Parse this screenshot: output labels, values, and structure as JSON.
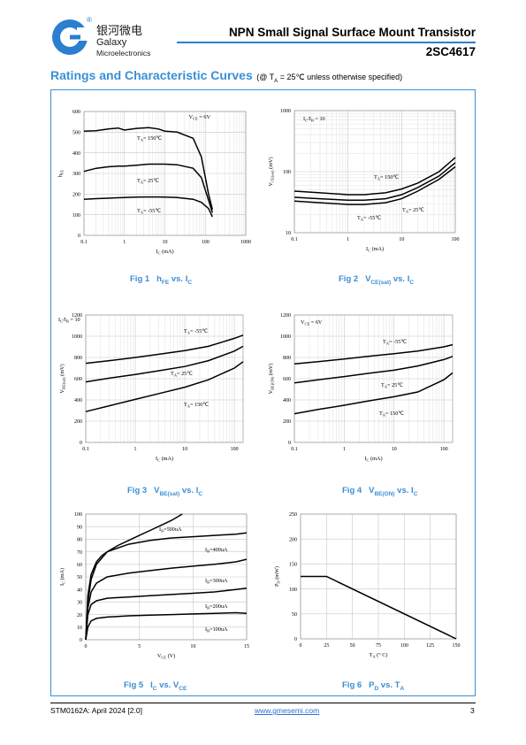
{
  "logo": {
    "registered_mark": "®",
    "chinese_name": "银河微电",
    "name_line1": "Galaxy",
    "name_line2": "Microelectronics"
  },
  "header": {
    "title": "NPN Small Signal Surface Mount Transistor",
    "part_number": "2SC4617"
  },
  "section": {
    "title": "Ratings and Characteristic Curves",
    "note_prefix": "(@ T",
    "note_sub": "A",
    "note_suffix": " = 25℃ unless otherwise specified)"
  },
  "figures": [
    {
      "caption_prefix": "Fig 1",
      "caption_main": "h",
      "caption_sub": "FE",
      "caption_mid": " vs. I",
      "caption_sub2": "C"
    },
    {
      "caption_prefix": "Fig 2",
      "caption_main": "V",
      "caption_sub": "CE(sat)",
      "caption_mid": " vs. I",
      "caption_sub2": "C"
    },
    {
      "caption_prefix": "Fig 3",
      "caption_main": "V",
      "caption_sub": "BE(sat)",
      "caption_mid": " vs. I",
      "caption_sub2": "C"
    },
    {
      "caption_prefix": "Fig 4",
      "caption_main": "V",
      "caption_sub": "BE(ON)",
      "caption_mid": " vs. I",
      "caption_sub2": "C"
    },
    {
      "caption_prefix": "Fig 5",
      "caption_main": "I",
      "caption_sub": "C",
      "caption_mid": " vs. V",
      "caption_sub2": "CE"
    },
    {
      "caption_prefix": "Fig 6",
      "caption_main": "P",
      "caption_sub": "D",
      "caption_mid": " vs. T",
      "caption_sub2": "A"
    }
  ],
  "chart_data": [
    {
      "type": "line",
      "xscale": "log",
      "xlim": [
        0.1,
        1000
      ],
      "ylim": [
        0,
        600
      ],
      "grid": true,
      "xticks": [
        "0.1",
        "1",
        "10",
        "100",
        "1000"
      ],
      "yticks": [
        "0",
        "100",
        "200",
        "300",
        "400",
        "500",
        "600"
      ],
      "xlabel": "I  (mA)",
      "xlabel_sub": "C",
      "ylabel": "h",
      "ylabel_sub": "FE",
      "condition": "V   =  6V",
      "condition_sub": "CE",
      "series": [
        {
          "name": "T  = 150℃",
          "x": [
            0.1,
            0.2,
            0.4,
            0.7,
            1,
            2,
            4,
            7,
            10,
            20,
            50,
            80,
            120,
            150
          ],
          "y": [
            505,
            507,
            515,
            520,
            510,
            518,
            522,
            515,
            505,
            500,
            470,
            380,
            200,
            125
          ]
        },
        {
          "name": "T  = 25℃",
          "x": [
            0.1,
            0.2,
            0.4,
            0.7,
            1,
            2,
            4,
            7,
            10,
            20,
            50,
            80,
            120,
            150
          ],
          "y": [
            310,
            325,
            332,
            335,
            335,
            340,
            345,
            345,
            345,
            342,
            325,
            280,
            170,
            110
          ]
        },
        {
          "name": "T  = -55℃",
          "x": [
            0.1,
            0.2,
            0.4,
            0.7,
            1,
            2,
            4,
            7,
            10,
            20,
            50,
            80,
            120,
            150
          ],
          "y": [
            175,
            178,
            180,
            182,
            183,
            185,
            186,
            186,
            185,
            183,
            175,
            160,
            130,
            90
          ]
        }
      ]
    },
    {
      "type": "line",
      "xscale": "log",
      "yscale": "log",
      "xlim": [
        0.1,
        100
      ],
      "ylim": [
        10,
        1000
      ],
      "grid": true,
      "xticks": [
        "0.1",
        "1",
        "10",
        "100"
      ],
      "yticks": [
        "10",
        "100",
        "1000"
      ],
      "xlabel": "I  (mA)",
      "xlabel_sub": "C",
      "ylabel": "V       (mV)",
      "ylabel_sub": "CE(sat)",
      "condition": "I /I  = 10",
      "condition_sub1": "C",
      "condition_sub2": "B",
      "series": [
        {
          "name": "T  = 150℃",
          "x": [
            0.1,
            0.3,
            1,
            2,
            5,
            10,
            20,
            50,
            100
          ],
          "y": [
            48,
            45,
            42,
            42,
            45,
            52,
            65,
            100,
            170
          ]
        },
        {
          "name": "T  = 25℃",
          "x": [
            0.1,
            0.3,
            1,
            2,
            5,
            10,
            20,
            50,
            100
          ],
          "y": [
            38,
            36,
            34,
            34,
            36,
            42,
            55,
            85,
            140
          ]
        },
        {
          "name": "T  = -55℃",
          "x": [
            0.1,
            0.3,
            1,
            2,
            5,
            10,
            20,
            50,
            100
          ],
          "y": [
            33,
            31,
            29,
            29,
            31,
            36,
            48,
            75,
            120
          ]
        }
      ]
    },
    {
      "type": "line",
      "xscale": "log",
      "xlim": [
        0.1,
        150
      ],
      "ylim": [
        0,
        1200
      ],
      "grid": true,
      "xticks": [
        "0.1",
        "1",
        "10",
        "100"
      ],
      "yticks": [
        "0",
        "200",
        "400",
        "600",
        "800",
        "1000",
        "1200"
      ],
      "xlabel": "I  (mA)",
      "xlabel_sub": "C",
      "ylabel": "V        (mV)",
      "ylabel_sub": "BE(sat)",
      "condition": "I /I  = 10",
      "condition_sub1": "C",
      "condition_sub2": "B",
      "series": [
        {
          "name": "T  = -55℃",
          "x": [
            0.1,
            0.3,
            1,
            3,
            10,
            30,
            100,
            150
          ],
          "y": [
            745,
            770,
            800,
            830,
            865,
            905,
            980,
            1010
          ]
        },
        {
          "name": "T  = 25℃",
          "x": [
            0.1,
            0.3,
            1,
            3,
            10,
            30,
            100,
            150
          ],
          "y": [
            570,
            605,
            640,
            675,
            715,
            770,
            860,
            905
          ]
        },
        {
          "name": "T  = 150℃",
          "x": [
            0.1,
            0.3,
            1,
            3,
            10,
            30,
            100,
            150
          ],
          "y": [
            290,
            345,
            405,
            460,
            520,
            590,
            700,
            760
          ]
        }
      ]
    },
    {
      "type": "line",
      "xscale": "log",
      "xlim": [
        0.1,
        150
      ],
      "ylim": [
        0,
        1200
      ],
      "grid": true,
      "xticks": [
        "0.1",
        "1",
        "10",
        "100"
      ],
      "yticks": [
        "0",
        "200",
        "400",
        "600",
        "800",
        "1000",
        "1200"
      ],
      "xlabel": "I  (mA)",
      "xlabel_sub": "C",
      "ylabel": "V        (mV)",
      "ylabel_sub": "BE(ON)",
      "condition": "V   = 6V",
      "condition_sub": "CE",
      "series": [
        {
          "name": "T  = -55℃",
          "x": [
            0.1,
            0.3,
            1,
            3,
            10,
            30,
            100,
            150
          ],
          "y": [
            740,
            760,
            785,
            810,
            835,
            860,
            900,
            920
          ]
        },
        {
          "name": "T  = 25℃",
          "x": [
            0.1,
            0.3,
            1,
            3,
            10,
            30,
            100,
            150
          ],
          "y": [
            560,
            590,
            620,
            650,
            680,
            720,
            780,
            810
          ]
        },
        {
          "name": "T  = 150℃",
          "x": [
            0.1,
            0.3,
            1,
            3,
            10,
            30,
            100,
            150
          ],
          "y": [
            270,
            310,
            350,
            390,
            430,
            475,
            590,
            655
          ]
        }
      ]
    },
    {
      "type": "line",
      "xlim": [
        0,
        15
      ],
      "ylim": [
        0,
        100
      ],
      "grid": true,
      "xticks": [
        "0",
        "5",
        "10",
        "15"
      ],
      "yticks": [
        "0",
        "10",
        "20",
        "30",
        "40",
        "50",
        "60",
        "70",
        "80",
        "90",
        "100"
      ],
      "xlabel": "V  (V)",
      "xlabel_sub": "CE",
      "ylabel": "I  (mA)",
      "ylabel_sub": "C",
      "series": [
        {
          "name": "I  =500uA",
          "x": [
            0,
            0.2,
            0.5,
            1,
            1.5,
            2,
            3,
            4,
            5,
            6,
            7,
            8,
            9
          ],
          "y": [
            0,
            35,
            52,
            62,
            67,
            70,
            75,
            79,
            83,
            87,
            91,
            95,
            100
          ]
        },
        {
          "name": "I  =400uA",
          "x": [
            0,
            0.2,
            0.5,
            1,
            2,
            4,
            6,
            8,
            10,
            12,
            14,
            15
          ],
          "y": [
            0,
            30,
            48,
            60,
            70,
            76,
            79,
            81,
            82,
            83,
            84,
            85
          ]
        },
        {
          "name": "I  =300uA",
          "x": [
            0,
            0.2,
            0.5,
            1,
            2,
            4,
            6,
            8,
            10,
            12,
            14,
            15
          ],
          "y": [
            0,
            25,
            38,
            45,
            50,
            53,
            55,
            57,
            58.5,
            60,
            62,
            64
          ]
        },
        {
          "name": "I  =200uA",
          "x": [
            0,
            0.2,
            0.5,
            1,
            2,
            4,
            6,
            8,
            10,
            12,
            14,
            15
          ],
          "y": [
            0,
            20,
            28,
            31,
            33,
            34,
            35,
            36,
            37,
            38,
            40,
            41
          ]
        },
        {
          "name": "I  =100uA",
          "x": [
            0,
            0.2,
            0.5,
            1,
            2,
            4,
            6,
            8,
            10,
            12,
            14,
            15
          ],
          "y": [
            0,
            10,
            15,
            17,
            18,
            19,
            19.5,
            20,
            20.5,
            21,
            21.5,
            21
          ]
        }
      ],
      "label_sub": "B"
    },
    {
      "type": "line",
      "xlim": [
        0,
        150
      ],
      "ylim": [
        0,
        250
      ],
      "grid": true,
      "xticks": [
        "0",
        "25",
        "50",
        "75",
        "100",
        "125",
        "150"
      ],
      "yticks": [
        "0",
        "50",
        "100",
        "150",
        "200",
        "250"
      ],
      "xlabel": "T  (° C)",
      "xlabel_sub": "A",
      "ylabel": "P  (mW)",
      "ylabel_sub": "D",
      "series": [
        {
          "name": "",
          "x": [
            0,
            25,
            150
          ],
          "y": [
            125,
            125,
            0
          ]
        }
      ]
    }
  ],
  "footer": {
    "doc_id": "STM0162A: April 2024 [2.0]",
    "url": "www.gmesemi.com",
    "page": "3"
  }
}
